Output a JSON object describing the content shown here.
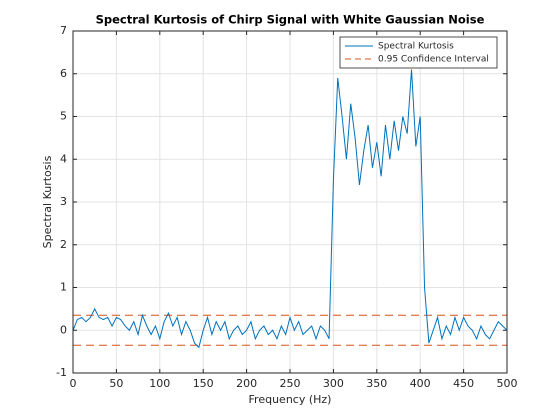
{
  "chart_data": {
    "type": "line",
    "title": "Spectral Kurtosis of Chirp Signal with White Gaussian Noise",
    "xlabel": "Frequency (Hz)",
    "ylabel": "Spectral Kurtosis",
    "xlim": [
      0,
      500
    ],
    "ylim": [
      -1,
      7
    ],
    "xticks": [
      0,
      50,
      100,
      150,
      200,
      250,
      300,
      350,
      400,
      450,
      500
    ],
    "yticks": [
      -1,
      0,
      1,
      2,
      3,
      4,
      5,
      6,
      7
    ],
    "grid": true,
    "legend": "upper right",
    "series": [
      {
        "name": "Spectral Kurtosis",
        "color": "#0072bd",
        "x": [
          0,
          5,
          10,
          15,
          20,
          25,
          30,
          35,
          40,
          45,
          50,
          55,
          60,
          65,
          70,
          75,
          80,
          85,
          90,
          95,
          100,
          105,
          110,
          115,
          120,
          125,
          130,
          135,
          140,
          145,
          150,
          155,
          160,
          165,
          170,
          175,
          180,
          185,
          190,
          195,
          200,
          205,
          210,
          215,
          220,
          225,
          230,
          235,
          240,
          245,
          250,
          255,
          260,
          265,
          270,
          275,
          280,
          285,
          290,
          295,
          300,
          305,
          310,
          315,
          320,
          325,
          330,
          335,
          340,
          345,
          350,
          355,
          360,
          365,
          370,
          375,
          380,
          385,
          390,
          395,
          400,
          405,
          410,
          415,
          420,
          425,
          430,
          435,
          440,
          445,
          450,
          455,
          460,
          465,
          470,
          475,
          480,
          485,
          490,
          495,
          500
        ],
        "values": [
          0,
          0.25,
          0.3,
          0.2,
          0.3,
          0.5,
          0.3,
          0.25,
          0.3,
          0.1,
          0.3,
          0.25,
          0.1,
          0,
          0.2,
          -0.1,
          0.35,
          0.1,
          -0.1,
          0.1,
          -0.2,
          0.2,
          0.4,
          0.1,
          0.3,
          -0.1,
          0.2,
          0,
          -0.3,
          -0.4,
          0,
          0.3,
          -0.1,
          0.2,
          0,
          0.2,
          -0.2,
          0,
          0.1,
          -0.1,
          0,
          0.2,
          -0.2,
          0,
          0.1,
          -0.1,
          0,
          -0.2,
          0.1,
          -0.1,
          0.3,
          0,
          0.2,
          -0.1,
          0,
          0.1,
          -0.2,
          0.1,
          0,
          -0.2,
          3.5,
          5.9,
          5,
          4,
          5.3,
          4.5,
          3.4,
          4.2,
          4.8,
          3.8,
          4.4,
          3.6,
          4.8,
          4,
          4.9,
          4.2,
          5,
          4.6,
          6.1,
          4.3,
          5,
          1,
          -0.3,
          0,
          0.3,
          -0.2,
          0.1,
          -0.1,
          0.3,
          0,
          0.3,
          0.1,
          0,
          -0.2,
          0.1,
          -0.1,
          -0.2,
          0,
          0.2,
          0.1,
          0
        ]
      }
    ],
    "confidence_interval": {
      "name": "0.95 Confidence Interval",
      "color": "#d95319",
      "values": [
        0.35,
        -0.35
      ]
    }
  }
}
